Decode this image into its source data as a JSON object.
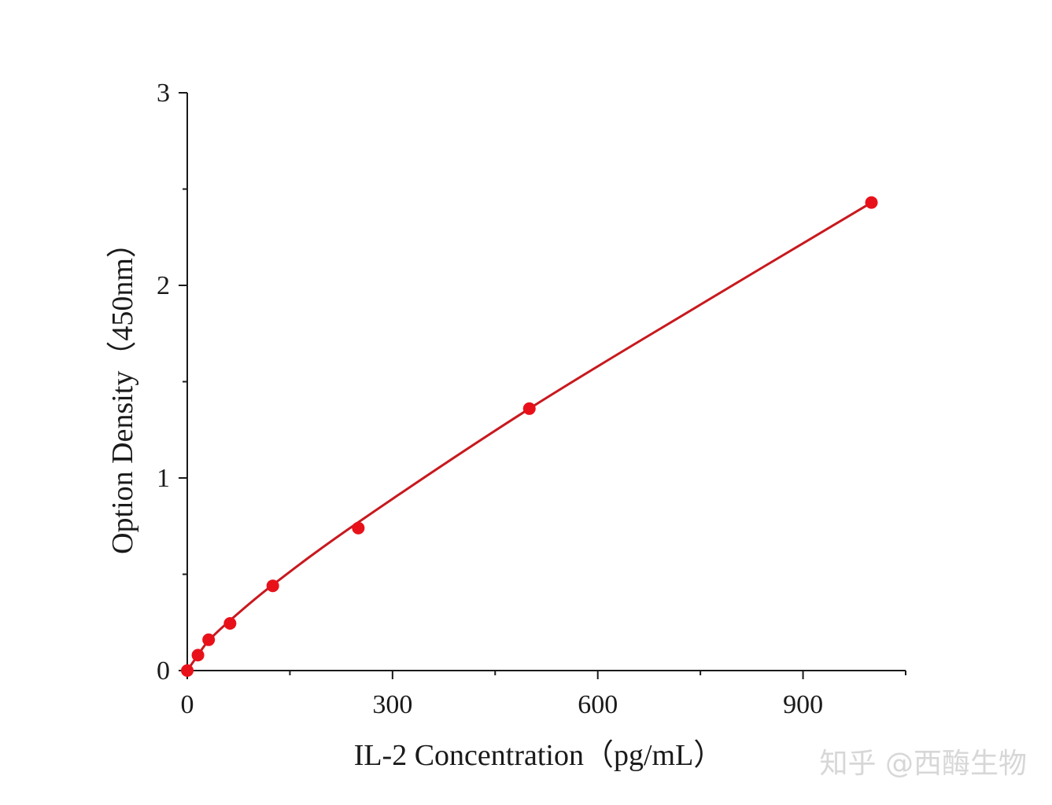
{
  "watermark": "知乎 @西酶生物",
  "chart_data": {
    "type": "scatter",
    "title": "",
    "xlabel": "IL-2 Concentration（pg/mL）",
    "ylabel": "Option Density（450nm）",
    "xlim": [
      0,
      1050
    ],
    "ylim": [
      0,
      3
    ],
    "x_ticks": [
      0,
      300,
      600,
      900
    ],
    "x_minor_ticks": [
      150,
      450,
      750,
      1050
    ],
    "y_ticks": [
      0,
      1,
      2,
      3
    ],
    "y_minor_ticks": [
      0.5,
      1.5,
      2.5
    ],
    "grid": false,
    "legend": "none",
    "series": [
      {
        "points": [
          {
            "x": 0,
            "y": 0.0
          },
          {
            "x": 15.6,
            "y": 0.08
          },
          {
            "x": 31.25,
            "y": 0.16
          },
          {
            "x": 62.5,
            "y": 0.245
          },
          {
            "x": 125,
            "y": 0.44
          },
          {
            "x": 250,
            "y": 0.74
          },
          {
            "x": 500,
            "y": 1.36
          },
          {
            "x": 1000,
            "y": 2.43
          }
        ],
        "color": "#e8111a"
      }
    ],
    "fit_curve": {
      "type": "smooth",
      "color": "#c8191e",
      "points": [
        {
          "x": 0,
          "y": 0.0
        },
        {
          "x": 15.6,
          "y": 0.08
        },
        {
          "x": 31.25,
          "y": 0.155
        },
        {
          "x": 62.5,
          "y": 0.26
        },
        {
          "x": 125,
          "y": 0.445
        },
        {
          "x": 250,
          "y": 0.77
        },
        {
          "x": 500,
          "y": 1.36
        },
        {
          "x": 750,
          "y": 1.9
        },
        {
          "x": 1000,
          "y": 2.43
        }
      ]
    }
  }
}
